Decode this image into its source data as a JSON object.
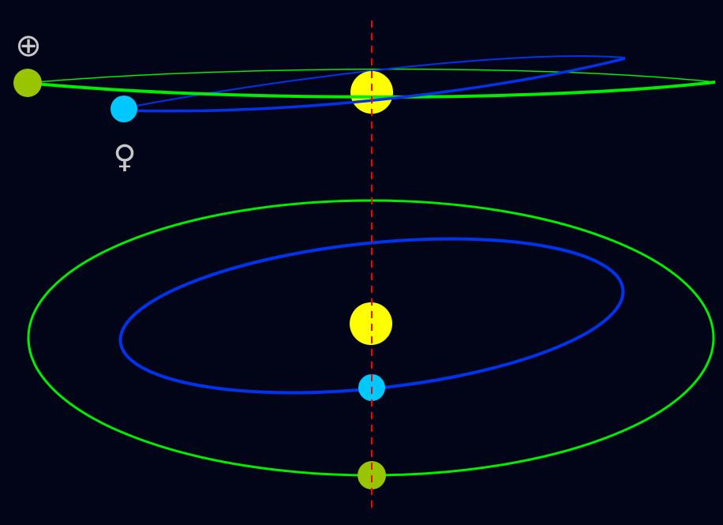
{
  "symbols": {
    "earth": "⊕",
    "venus": "♀"
  },
  "colors": {
    "background": "#020418",
    "earth_orbit": "#00ee00",
    "venus_orbit": "#0033ee",
    "sun": "#ffff00",
    "earth": "#99c400",
    "venus": "#00c8ff",
    "reference_line": "#ff0000",
    "symbol": "#c8c8c8"
  },
  "views": [
    {
      "name": "edge-on",
      "description_visible": false
    },
    {
      "name": "top-down",
      "description_visible": false
    }
  ]
}
